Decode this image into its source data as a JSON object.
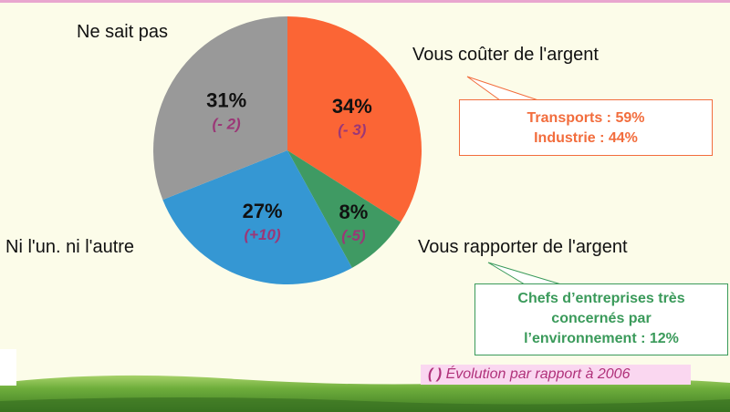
{
  "chart_data": {
    "type": "pie",
    "categories": [
      "Vous coûter de l'argent",
      "Vous rapporter de l'argent",
      "Ni l'un. ni l'autre",
      "Ne sait pas"
    ],
    "values": [
      34,
      8,
      27,
      31
    ],
    "value_labels": [
      "34%",
      "8%",
      "27%",
      "31%"
    ],
    "change_labels": [
      "(- 3)",
      "(-5)",
      "(+10)",
      "(- 2)"
    ],
    "colors": [
      "#fb6535",
      "#3f9a63",
      "#3597d3",
      "#999999"
    ],
    "change_color": "#9b3777"
  },
  "labels": {
    "cost": "Vous coûter de l'argent",
    "gain": "Vous rapporter de l'argent",
    "neither": "Ni l'un. ni l'autre",
    "dontknow": "Ne sait pas"
  },
  "callout_cost": {
    "line1": "Transports : 59%",
    "line2": "Industrie : 44%",
    "color": "#f26d3d"
  },
  "callout_gain": {
    "line1": "Chefs d’entreprises très",
    "line2": "concernés par",
    "line3": "l’environnement : 12%",
    "color": "#3a9a5a"
  },
  "note": {
    "paren": "( )",
    "text": "Évolution par rapport à 2006"
  }
}
